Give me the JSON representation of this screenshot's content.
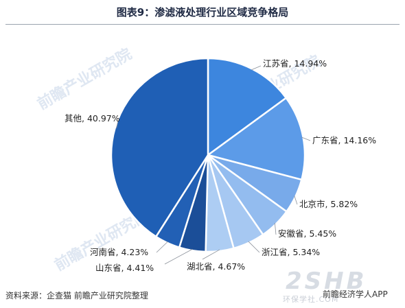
{
  "title": "图表9：渗滤液处理行业区域竞争格局",
  "source": "资料来源：企查猫 前瞻产业研究院整理",
  "brand": {
    "name": "前瞻经济学人APP",
    "logo": "2SHB",
    "subtext": "环保学社.COM"
  },
  "watermark": "前瞻产业研究院",
  "colors": {
    "slices": [
      "#3d86de",
      "#5c9be8",
      "#78aaea",
      "#93bcef",
      "#a6c8f2",
      "#adcdf3",
      "#1b4e98",
      "#2260b5",
      "#1f5fb5"
    ]
  },
  "chart_data": {
    "type": "pie",
    "title": "图表9：渗滤液处理行业区域竞争格局",
    "labels": [
      "江苏省",
      "广东省",
      "北京市",
      "安徽省",
      "浙江省",
      "湖北省",
      "山东省",
      "河南省",
      "其他"
    ],
    "values": [
      14.94,
      14.16,
      5.82,
      5.45,
      5.34,
      4.67,
      4.41,
      4.23,
      40.97
    ],
    "display": [
      "江苏省, 14.94%",
      "广东省, 14.16%",
      "北京市, 5.82%",
      "安徽省, 5.45%",
      "浙江省, 5.34%",
      "湖北省, 4.67%",
      "山东省, 4.41%",
      "河南省, 4.23%",
      "其他, 40.97%"
    ],
    "unit": "%"
  }
}
